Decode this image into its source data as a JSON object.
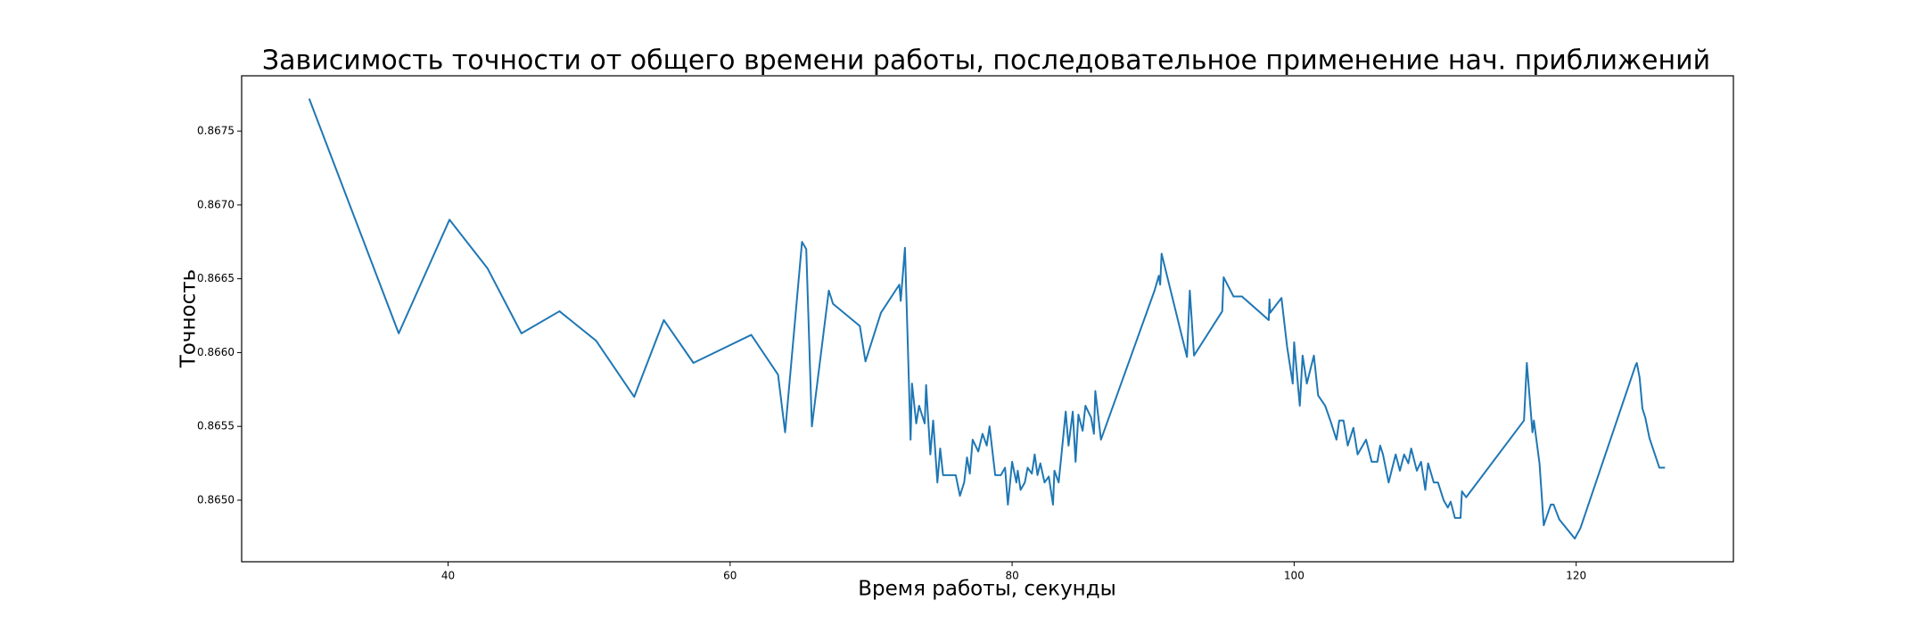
{
  "chart_data": {
    "type": "line",
    "title": "Зависимость точности от общего времени работы, последовательное применение нач. приближений",
    "x_label": "Время работы, секунды",
    "y_label": "Точность",
    "xlim": [
      25.36,
      131.15
    ],
    "ylim": [
      0.864583,
      0.867875
    ],
    "xticks": [
      40,
      60,
      80,
      100,
      120
    ],
    "yticks": [
      {
        "value": 0.865,
        "label": "0.8650"
      },
      0.8655,
      {
        "value": 0.866,
        "label": "0.8660"
      },
      0.8665,
      {
        "value": 0.867,
        "label": "0.8670"
      },
      0.8675
    ],
    "grid": false,
    "series": [
      {
        "color": "#1f77b4",
        "x": [
          30.15,
          36.5,
          40.1,
          42.8,
          45.2,
          47.9,
          50.5,
          53.2,
          55.3,
          57.4,
          61.5,
          63.4,
          63.9,
          65.1,
          65.4,
          65.8,
          67.0,
          67.3,
          69.2,
          69.6,
          70.7,
          72.0,
          72.1,
          72.4,
          72.8,
          72.9,
          73.2,
          73.4,
          73.8,
          73.9,
          74.2,
          74.4,
          74.7,
          74.9,
          75.1,
          75.7,
          76.0,
          76.3,
          76.6,
          76.8,
          77.0,
          77.2,
          77.6,
          77.9,
          78.2,
          78.4,
          78.8,
          79.2,
          79.5,
          79.7,
          80.0,
          80.3,
          80.4,
          80.6,
          80.9,
          81.1,
          81.4,
          81.6,
          81.8,
          82.0,
          82.3,
          82.6,
          82.9,
          83.0,
          83.3,
          83.5,
          83.8,
          84.0,
          84.3,
          84.5,
          84.7,
          85.0,
          85.2,
          85.6,
          85.8,
          85.9,
          86.3,
          90.1,
          90.4,
          90.5,
          90.6,
          92.4,
          92.6,
          92.9,
          94.9,
          95.0,
          95.7,
          96.3,
          98.2,
          98.25,
          98.3,
          99.1,
          99.5,
          99.9,
          100.0,
          100.4,
          100.6,
          100.9,
          101.4,
          101.7,
          102.2,
          102.6,
          103.0,
          103.2,
          103.5,
          103.8,
          104.2,
          104.5,
          105.1,
          105.5,
          105.9,
          106.1,
          106.3,
          106.7,
          107.2,
          107.5,
          107.8,
          108.1,
          108.3,
          108.7,
          109.0,
          109.3,
          109.5,
          109.9,
          110.2,
          110.6,
          110.9,
          111.1,
          111.4,
          111.8,
          111.9,
          112.2,
          116.3,
          116.5,
          116.9,
          117.0,
          117.4,
          117.7,
          118.2,
          118.4,
          118.8,
          119.9,
          120.3,
          124.2,
          124.3,
          124.5,
          124.7,
          124.9,
          125.2,
          125.9,
          126.3
        ],
        "values": [
          0.86772,
          0.86613,
          0.8669,
          0.86657,
          0.86613,
          0.86628,
          0.86608,
          0.8657,
          0.86622,
          0.86593,
          0.86612,
          0.86585,
          0.86546,
          0.86675,
          0.8667,
          0.8655,
          0.86642,
          0.86633,
          0.86618,
          0.86594,
          0.86627,
          0.86646,
          0.86635,
          0.86671,
          0.86541,
          0.86579,
          0.86552,
          0.86564,
          0.86552,
          0.86578,
          0.86531,
          0.86554,
          0.86512,
          0.86535,
          0.86517,
          0.86517,
          0.86517,
          0.86503,
          0.86512,
          0.86529,
          0.86518,
          0.86541,
          0.86533,
          0.86545,
          0.86537,
          0.8655,
          0.86517,
          0.86517,
          0.86522,
          0.86497,
          0.86526,
          0.86512,
          0.8652,
          0.86507,
          0.86512,
          0.86522,
          0.86518,
          0.86531,
          0.86517,
          0.86525,
          0.86512,
          0.86516,
          0.86497,
          0.8652,
          0.86512,
          0.86531,
          0.8656,
          0.86537,
          0.8656,
          0.86526,
          0.86558,
          0.86547,
          0.86564,
          0.86556,
          0.86545,
          0.86574,
          0.86541,
          0.86642,
          0.86652,
          0.86646,
          0.86667,
          0.86597,
          0.86642,
          0.86598,
          0.86628,
          0.86651,
          0.86638,
          0.86638,
          0.86622,
          0.86636,
          0.86627,
          0.86637,
          0.86604,
          0.86579,
          0.86607,
          0.86564,
          0.86598,
          0.86579,
          0.86598,
          0.86571,
          0.86564,
          0.86553,
          0.86541,
          0.86554,
          0.86554,
          0.86537,
          0.86549,
          0.86531,
          0.86541,
          0.86526,
          0.86526,
          0.86537,
          0.86531,
          0.86512,
          0.86531,
          0.8652,
          0.86531,
          0.86525,
          0.86535,
          0.8652,
          0.86526,
          0.86507,
          0.86525,
          0.86512,
          0.86512,
          0.865,
          0.86495,
          0.86499,
          0.86488,
          0.86488,
          0.86506,
          0.86502,
          0.86554,
          0.86593,
          0.86546,
          0.86554,
          0.86525,
          0.86483,
          0.86497,
          0.86497,
          0.86487,
          0.86474,
          0.86481,
          0.86591,
          0.86593,
          0.86583,
          0.86562,
          0.86556,
          0.86542,
          0.86522,
          0.86522
        ]
      }
    ]
  }
}
